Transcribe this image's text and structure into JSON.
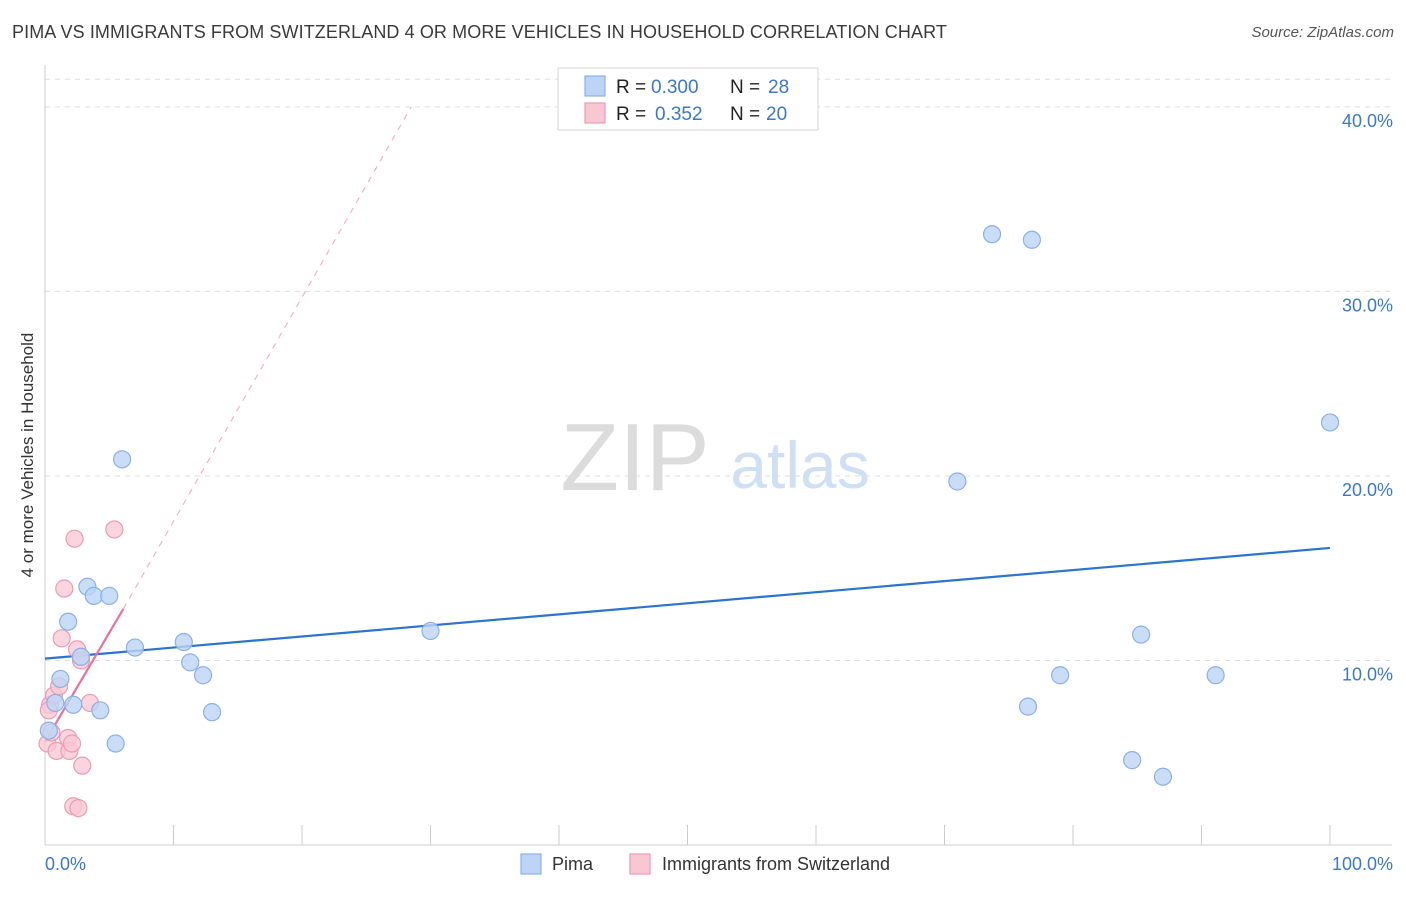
{
  "header": {
    "title": "PIMA VS IMMIGRANTS FROM SWITZERLAND 4 OR MORE VEHICLES IN HOUSEHOLD CORRELATION CHART",
    "source": "Source: ZipAtlas.com"
  },
  "watermark": {
    "zip": "ZIP",
    "atlas": "atlas"
  },
  "colors": {
    "pima_fill": "#bcd4f5",
    "pima_stroke": "#8ab0e8",
    "pima_line": "#2b74d0",
    "swiss_fill": "#f8c7d4",
    "swiss_stroke": "#eb9bb2",
    "swiss_line": "#e6739a",
    "tick_label": "#3b78c9",
    "grid": "#dddddd"
  },
  "stats_legend": [
    {
      "r_label": "R = ",
      "r_value": "0.300",
      "n_label": "N = ",
      "n_value": "28"
    },
    {
      "r_label": "R = ",
      "r_value": "0.352",
      "n_label": "N = ",
      "n_value": "20"
    }
  ],
  "chart_data": {
    "type": "scatter",
    "title": "PIMA VS IMMIGRANTS FROM SWITZERLAND 4 OR MORE VEHICLES IN HOUSEHOLD CORRELATION CHART",
    "xlabel": "",
    "ylabel": "4 or more Vehicles in Household",
    "xlim": [
      0,
      100
    ],
    "ylim": [
      0,
      42
    ],
    "x_tick_labels": [
      {
        "value": 0,
        "label": "0.0%"
      },
      {
        "value": 100,
        "label": "100.0%"
      }
    ],
    "y_tick_labels": [
      {
        "value": 10,
        "label": "10.0%"
      },
      {
        "value": 20,
        "label": "20.0%"
      },
      {
        "value": 30,
        "label": "30.0%"
      },
      {
        "value": 40,
        "label": "40.0%"
      }
    ],
    "grid": true,
    "legend_position": "bottom",
    "series": [
      {
        "name": "Pima",
        "points": [
          [
            0.3,
            6.2
          ],
          [
            0.8,
            7.7
          ],
          [
            1.2,
            9.0
          ],
          [
            1.8,
            12.1
          ],
          [
            2.2,
            7.6
          ],
          [
            2.8,
            10.2
          ],
          [
            3.3,
            14.0
          ],
          [
            3.8,
            13.5
          ],
          [
            4.3,
            7.3
          ],
          [
            5.0,
            13.5
          ],
          [
            5.5,
            5.5
          ],
          [
            6.0,
            20.9
          ],
          [
            7.0,
            10.7
          ],
          [
            10.8,
            11.0
          ],
          [
            11.3,
            9.9
          ],
          [
            12.3,
            9.2
          ],
          [
            13.0,
            7.2
          ],
          [
            30.0,
            11.6
          ],
          [
            71.0,
            19.7
          ],
          [
            73.7,
            33.1
          ],
          [
            76.8,
            32.8
          ],
          [
            76.5,
            7.5
          ],
          [
            79.0,
            9.2
          ],
          [
            84.6,
            4.6
          ],
          [
            85.3,
            11.4
          ],
          [
            87.0,
            3.7
          ],
          [
            91.1,
            9.2
          ],
          [
            100.0,
            22.9
          ]
        ],
        "trend": {
          "x": [
            0,
            100
          ],
          "y": [
            10.1,
            16.1
          ]
        }
      },
      {
        "name": "Immigrants from Switzerland",
        "points": [
          [
            0.2,
            5.5
          ],
          [
            0.4,
            7.6
          ],
          [
            0.5,
            6.1
          ],
          [
            0.7,
            8.1
          ],
          [
            0.9,
            5.1
          ],
          [
            1.1,
            8.6
          ],
          [
            1.3,
            11.2
          ],
          [
            1.5,
            13.9
          ],
          [
            1.8,
            5.8
          ],
          [
            1.9,
            5.1
          ],
          [
            2.1,
            5.5
          ],
          [
            2.2,
            2.1
          ],
          [
            2.3,
            16.6
          ],
          [
            2.5,
            10.6
          ],
          [
            2.6,
            2.0
          ],
          [
            2.8,
            10.0
          ],
          [
            2.9,
            4.3
          ],
          [
            3.5,
            7.7
          ],
          [
            5.4,
            17.1
          ],
          [
            0.3,
            7.3
          ]
        ],
        "trend": {
          "x": [
            0,
            6.1
          ],
          "y": [
            5.6,
            12.8
          ]
        },
        "trend_extension": {
          "x": [
            6.1,
            28.5
          ],
          "y": [
            12.8,
            40.0
          ]
        }
      }
    ]
  },
  "legend": [
    {
      "label": "Pima"
    },
    {
      "label": "Immigrants from Switzerland"
    }
  ]
}
